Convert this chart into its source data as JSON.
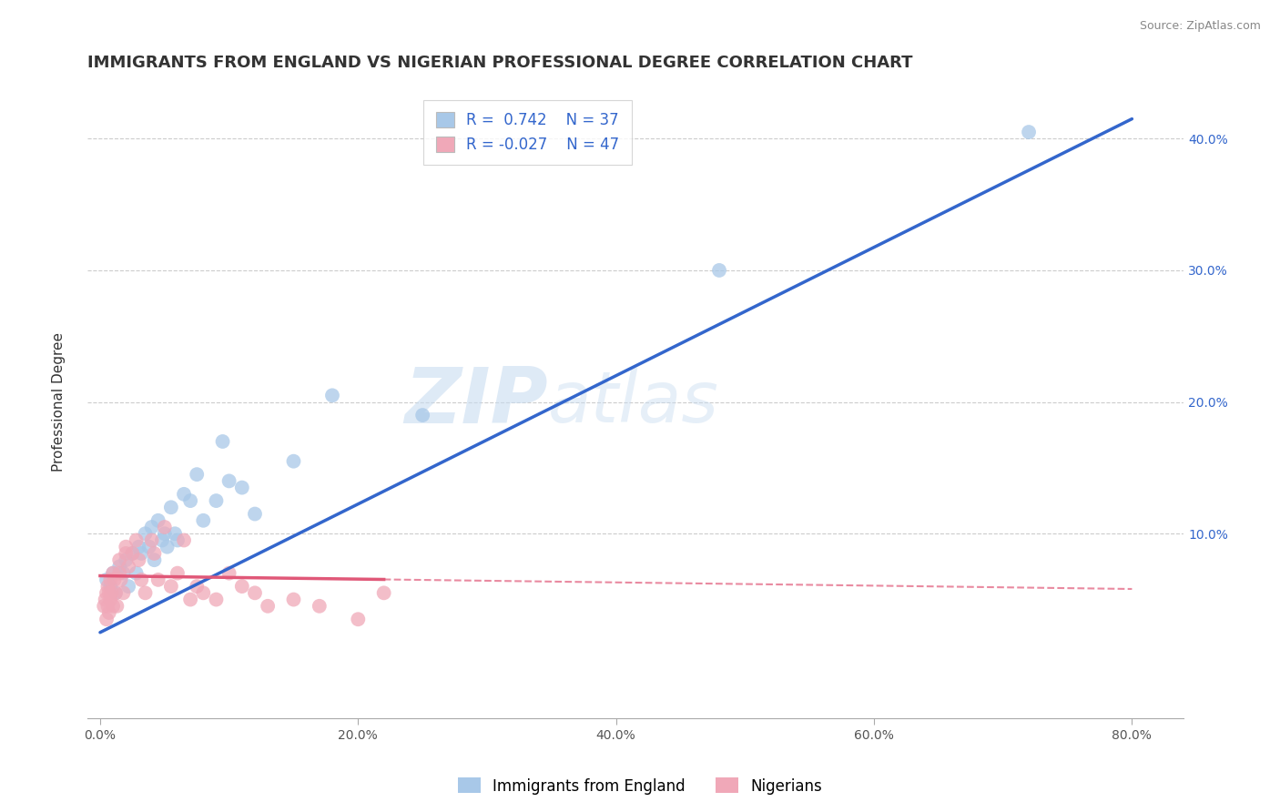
{
  "title": "IMMIGRANTS FROM ENGLAND VS NIGERIAN PROFESSIONAL DEGREE CORRELATION CHART",
  "source": "Source: ZipAtlas.com",
  "ylabel": "Professional Degree",
  "xlabel_ticks": [
    "0.0%",
    "20.0%",
    "40.0%",
    "60.0%",
    "80.0%"
  ],
  "xlabel_values": [
    0,
    20,
    40,
    60,
    80
  ],
  "ylabel_ticks": [
    "10.0%",
    "20.0%",
    "30.0%",
    "40.0%"
  ],
  "ylabel_values": [
    10,
    20,
    30,
    40
  ],
  "xlim": [
    -1,
    84
  ],
  "ylim": [
    -4,
    44
  ],
  "watermark_zip": "ZIP",
  "watermark_atlas": "atlas",
  "blue_R": 0.742,
  "blue_N": 37,
  "pink_R": -0.027,
  "pink_N": 47,
  "blue_color": "#a8c8e8",
  "pink_color": "#f0a8b8",
  "blue_line_color": "#3366cc",
  "pink_line_color": "#e05878",
  "legend_label_blue": "Immigrants from England",
  "legend_label_pink": "Nigerians",
  "blue_scatter_x": [
    0.5,
    0.8,
    1.0,
    1.2,
    1.5,
    1.8,
    2.0,
    2.2,
    2.5,
    2.8,
    3.0,
    3.2,
    3.5,
    3.8,
    4.0,
    4.2,
    4.5,
    4.8,
    5.0,
    5.2,
    5.5,
    5.8,
    6.0,
    6.5,
    7.0,
    7.5,
    8.0,
    9.0,
    9.5,
    10.0,
    11.0,
    12.0,
    15.0,
    18.0,
    25.0,
    48.0,
    72.0
  ],
  "blue_scatter_y": [
    6.5,
    6.0,
    7.0,
    5.5,
    7.5,
    7.0,
    8.0,
    6.0,
    8.5,
    7.0,
    9.0,
    8.5,
    10.0,
    9.0,
    10.5,
    8.0,
    11.0,
    9.5,
    10.0,
    9.0,
    12.0,
    10.0,
    9.5,
    13.0,
    12.5,
    14.5,
    11.0,
    12.5,
    17.0,
    14.0,
    13.5,
    11.5,
    15.5,
    20.5,
    19.0,
    30.0,
    40.5
  ],
  "pink_scatter_x": [
    0.3,
    0.4,
    0.5,
    0.5,
    0.6,
    0.6,
    0.7,
    0.7,
    0.8,
    0.8,
    0.9,
    1.0,
    1.0,
    1.1,
    1.2,
    1.3,
    1.5,
    1.5,
    1.6,
    1.8,
    2.0,
    2.0,
    2.2,
    2.5,
    2.8,
    3.0,
    3.2,
    3.5,
    4.0,
    4.2,
    4.5,
    5.0,
    5.5,
    6.0,
    6.5,
    7.0,
    7.5,
    8.0,
    9.0,
    10.0,
    11.0,
    12.0,
    13.0,
    15.0,
    17.0,
    20.0,
    22.0
  ],
  "pink_scatter_y": [
    4.5,
    5.0,
    5.5,
    3.5,
    6.0,
    4.5,
    5.5,
    4.0,
    6.5,
    5.0,
    5.5,
    7.0,
    4.5,
    6.5,
    5.5,
    4.5,
    8.0,
    7.0,
    6.5,
    5.5,
    9.0,
    8.5,
    7.5,
    8.5,
    9.5,
    8.0,
    6.5,
    5.5,
    9.5,
    8.5,
    6.5,
    10.5,
    6.0,
    7.0,
    9.5,
    5.0,
    6.0,
    5.5,
    5.0,
    7.0,
    6.0,
    5.5,
    4.5,
    5.0,
    4.5,
    3.5,
    5.5
  ],
  "blue_line_x0": 0,
  "blue_line_y0": 2.5,
  "blue_line_x1": 80,
  "blue_line_y1": 41.5,
  "pink_line_x0": 0,
  "pink_line_y0": 6.8,
  "pink_line_x1": 80,
  "pink_line_y1": 5.8,
  "pink_dashed_x0": 22,
  "pink_dashed_x1": 84,
  "grid_color": "#cccccc",
  "background_color": "#ffffff",
  "title_fontsize": 13,
  "axis_label_fontsize": 11,
  "tick_fontsize": 10,
  "legend_fontsize": 12
}
